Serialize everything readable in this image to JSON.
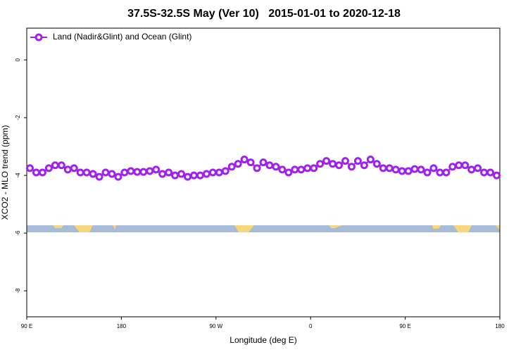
{
  "chart_data": {
    "type": "line",
    "title": "37.5S-32.5S May (Ver 10)   2015-01-01 to 2020-12-18",
    "x_label": "Longitude (deg E)",
    "y_label": "XCO2 - MLO trend (ppm)",
    "x": [
      93,
      99,
      105,
      111,
      117,
      123,
      129,
      135,
      141,
      147,
      153,
      159,
      165,
      171,
      177,
      183,
      189,
      195,
      201,
      207,
      213,
      219,
      225,
      231,
      237,
      243,
      249,
      255,
      261,
      267,
      273,
      279,
      285,
      291,
      297,
      303,
      309,
      315,
      321,
      327,
      333,
      339,
      345,
      351,
      357,
      363,
      369,
      375,
      381,
      387,
      393,
      399,
      405,
      411,
      417,
      423,
      429,
      435,
      441,
      447,
      453,
      459,
      465,
      471,
      477,
      483,
      489,
      495,
      501,
      507,
      513,
      519,
      525,
      531,
      537
    ],
    "series": [
      {
        "name": "Land (Nadir&Glint) and Ocean (Glint)",
        "color": "#a020f0",
        "values": [
          -3.75,
          -3.9,
          -3.9,
          -3.75,
          -3.65,
          -3.65,
          -3.8,
          -3.75,
          -3.9,
          -3.9,
          -3.95,
          -4.05,
          -3.9,
          -3.95,
          -4.05,
          -3.9,
          -3.85,
          -3.88,
          -3.88,
          -3.85,
          -3.8,
          -3.95,
          -3.9,
          -4.0,
          -3.95,
          -4.05,
          -4.0,
          -4.0,
          -3.95,
          -3.9,
          -3.9,
          -3.85,
          -3.7,
          -3.6,
          -3.45,
          -3.55,
          -3.75,
          -3.55,
          -3.65,
          -3.7,
          -3.8,
          -3.9,
          -3.8,
          -3.8,
          -3.75,
          -3.75,
          -3.6,
          -3.5,
          -3.6,
          -3.65,
          -3.5,
          -3.7,
          -3.5,
          -3.65,
          -3.45,
          -3.6,
          -3.75,
          -3.75,
          -3.8,
          -3.85,
          -3.85,
          -3.78,
          -3.8,
          -3.9,
          -3.75,
          -3.9,
          -3.9,
          -3.7,
          -3.65,
          -3.65,
          -3.8,
          -3.75,
          -3.9,
          -3.9,
          -4.0
        ]
      }
    ],
    "xlim": [
      90,
      540
    ],
    "xticks": [
      {
        "value": 90,
        "label": "90 E"
      },
      180,
      {
        "value": 270,
        "label": "90 W"
      },
      {
        "value": 360,
        "label": "0"
      },
      {
        "value": 450,
        "label": "90 E"
      },
      {
        "value": 540,
        "label": "180"
      }
    ],
    "ylim": [
      -8.9,
      1.1
    ],
    "yticks": [
      -8,
      -6,
      -4,
      -2,
      0
    ],
    "legend": "top-left"
  }
}
